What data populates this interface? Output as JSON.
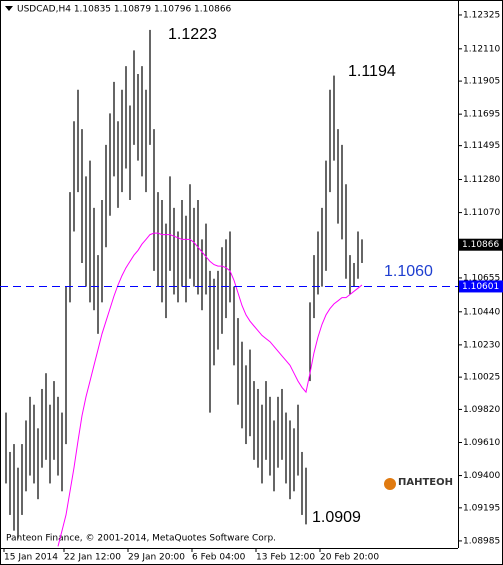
{
  "chart_data": {
    "type": "ohlc",
    "title": "USDCAD,H4  1.10835 1.10879 1.10796 1.10866",
    "footer": "Panteon Finance, © 2001-2014, MetaQuotes Software Corp.",
    "logo": "ПАНТЕОН",
    "annotations": [
      "1.1223",
      "1.1194",
      "1.1060",
      "1.0909"
    ],
    "current_price": 1.10866,
    "level": {
      "value": 1.10601,
      "label": "1.10601"
    },
    "level_color": "#0000ff",
    "ylim": [
      1.0894,
      1.1242
    ],
    "yticks": [
      1.12325,
      {
        "value": 1.1211,
        "label": "1.12110"
      },
      1.11905,
      1.11695,
      1.11495,
      {
        "value": 1.1128,
        "label": "1.11280"
      },
      {
        "value": 1.1107,
        "label": "1.11070"
      },
      1.10655,
      {
        "value": 1.1044,
        "label": "1.10440"
      },
      {
        "value": 1.1023,
        "label": "1.10230"
      },
      1.10025,
      {
        "value": 1.0982,
        "label": "1.09820"
      },
      {
        "value": 1.0961,
        "label": "1.09610"
      },
      {
        "value": 1.094,
        "label": "1.09400"
      },
      1.09195,
      1.08985
    ],
    "categories": [
      "15 Jan 2014",
      null,
      null,
      null,
      null,
      null,
      null,
      null,
      null,
      null,
      null,
      null,
      null,
      null,
      null,
      "22 Jan 12:00",
      null,
      null,
      null,
      null,
      null,
      null,
      null,
      null,
      null,
      null,
      null,
      null,
      null,
      null,
      null,
      "29 Jan 20:00",
      null,
      null,
      null,
      null,
      null,
      null,
      null,
      null,
      null,
      null,
      null,
      null,
      null,
      null,
      null,
      "6 Feb 04:00",
      null,
      null,
      null,
      null,
      null,
      null,
      null,
      null,
      null,
      null,
      null,
      null,
      null,
      null,
      null,
      "13 Feb 12:00",
      null,
      null,
      null,
      null,
      null,
      null,
      null,
      null,
      null,
      null,
      null,
      null,
      null,
      null,
      null,
      "20 Feb 20:00",
      null,
      null,
      null,
      null,
      null,
      null,
      null,
      null,
      null,
      null
    ],
    "bars": {
      "color": "#000000",
      "high": [
        1.098,
        1.0955,
        1.096,
        1.0945,
        1.096,
        1.0975,
        1.099,
        1.0985,
        1.097,
        1.0995,
        1.1005,
        1.0985,
        1.1,
        1.099,
        1.098,
        1.106,
        1.112,
        1.1165,
        1.1185,
        1.116,
        1.113,
        1.114,
        1.111,
        1.108,
        1.1115,
        1.115,
        1.117,
        1.119,
        1.1165,
        1.1185,
        1.12,
        1.1175,
        1.121,
        1.1195,
        1.12,
        1.1185,
        1.1223,
        1.116,
        1.112,
        1.1115,
        1.11,
        1.113,
        1.111,
        1.1095,
        1.1115,
        1.1105,
        1.1125,
        1.111,
        1.1115,
        1.109,
        1.11,
        1.107,
        1.1065,
        1.107,
        1.1085,
        1.109,
        1.1095,
        1.106,
        1.104,
        1.1025,
        1.101,
        1.102,
        1.1,
        1.0995,
        1.0985,
        1.1,
        1.099,
        1.0975,
        1.099,
        1.0995,
        1.098,
        1.0975,
        1.097,
        1.0985,
        1.0955,
        1.0945,
        1.105,
        1.108,
        1.1095,
        1.111,
        1.114,
        1.1185,
        1.1194,
        1.116,
        1.115,
        1.1125,
        1.108,
        1.1075,
        1.1095,
        1.109
      ],
      "low": [
        1.0935,
        1.0915,
        1.0905,
        1.09,
        1.0915,
        1.093,
        1.094,
        1.0935,
        1.0925,
        1.0945,
        1.095,
        1.0935,
        1.095,
        1.094,
        1.093,
        1.096,
        1.105,
        1.1095,
        1.112,
        1.1075,
        1.106,
        1.105,
        1.1045,
        1.103,
        1.105,
        1.1085,
        1.1105,
        1.113,
        1.111,
        1.112,
        1.1135,
        1.1115,
        1.115,
        1.114,
        1.113,
        1.112,
        1.115,
        1.107,
        1.106,
        1.105,
        1.104,
        1.107,
        1.1055,
        1.105,
        1.106,
        1.105,
        1.1065,
        1.106,
        1.1055,
        1.1045,
        1.1055,
        1.098,
        1.101,
        1.102,
        1.103,
        1.104,
        1.105,
        1.101,
        1.0985,
        1.097,
        1.096,
        1.0965,
        1.095,
        1.0945,
        1.0935,
        1.095,
        1.094,
        1.093,
        1.0945,
        1.095,
        1.0935,
        1.0925,
        1.093,
        1.094,
        1.0915,
        1.0909,
        1.1,
        1.104,
        1.1055,
        1.106,
        1.107,
        1.112,
        1.114,
        1.11,
        1.109,
        1.1065,
        1.1055,
        1.106,
        1.1065,
        1.1075
      ]
    },
    "ma": {
      "color": "#ff00ff",
      "values": [
        null,
        null,
        null,
        null,
        null,
        null,
        null,
        null,
        null,
        null,
        null,
        null,
        null,
        1.0895,
        1.0905,
        1.0915,
        1.093,
        1.0945,
        1.0962,
        1.0978,
        1.099,
        1.1,
        1.101,
        1.102,
        1.103,
        1.1038,
        1.1046,
        1.1054,
        1.1061,
        1.1067,
        1.1072,
        1.1076,
        1.108,
        1.1083,
        1.1087,
        1.109,
        1.1093,
        1.1094,
        1.1094,
        1.1093,
        1.1093,
        1.1093,
        1.1092,
        1.1091,
        1.109,
        1.109,
        1.109,
        1.1088,
        1.1085,
        1.1082,
        1.1079,
        1.1076,
        1.1074,
        1.1073,
        1.1073,
        1.1072,
        1.107,
        1.1064,
        1.1056,
        1.1048,
        1.1042,
        1.1038,
        1.1035,
        1.1032,
        1.1029,
        1.1027,
        1.1025,
        1.1022,
        1.1019,
        1.1016,
        1.1013,
        1.101,
        1.1005,
        1.1,
        1.0996,
        1.0993,
        1.1005,
        1.1018,
        1.1028,
        1.1036,
        1.1042,
        1.1046,
        1.1049,
        1.1051,
        1.1053,
        1.1053,
        1.1055,
        1.1057,
        1.1059,
        1.1061
      ]
    }
  }
}
